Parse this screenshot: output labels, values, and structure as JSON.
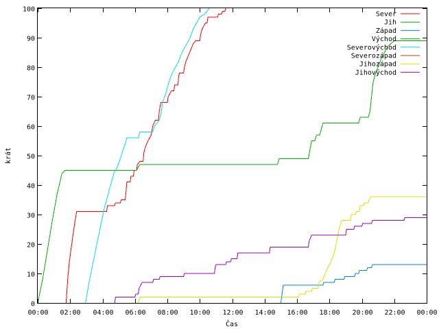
{
  "chart_data": {
    "type": "line",
    "title": "",
    "xlabel": "Čas",
    "ylabel": "krát",
    "xlim": [
      0,
      24
    ],
    "ylim": [
      0,
      100
    ],
    "xticks": [
      {
        "value": 0,
        "label": "00:00"
      },
      {
        "value": 2,
        "label": "02:00"
      },
      {
        "value": 4,
        "label": "04:00"
      },
      {
        "value": 6,
        "label": "06:00"
      },
      {
        "value": 8,
        "label": "08:00"
      },
      {
        "value": 10,
        "label": "10:00"
      },
      {
        "value": 12,
        "label": "12:00"
      },
      {
        "value": 14,
        "label": "14:00"
      },
      {
        "value": 16,
        "label": "16:00"
      },
      {
        "value": 18,
        "label": "18:00"
      },
      {
        "value": 20,
        "label": "20:00"
      },
      {
        "value": 22,
        "label": "22:00"
      },
      {
        "value": 24,
        "label": "00:00"
      }
    ],
    "yticks": [
      {
        "value": 0,
        "label": "0"
      },
      {
        "value": 10,
        "label": "10"
      },
      {
        "value": 20,
        "label": "20"
      },
      {
        "value": 30,
        "label": "30"
      },
      {
        "value": 40,
        "label": "40"
      },
      {
        "value": 50,
        "label": "50"
      },
      {
        "value": 60,
        "label": "60"
      },
      {
        "value": 70,
        "label": "70"
      },
      {
        "value": 80,
        "label": "80"
      },
      {
        "value": 90,
        "label": "90"
      },
      {
        "value": 100,
        "label": "100"
      }
    ],
    "grid": false,
    "legend": "top-right",
    "series": [
      {
        "name": "Sever",
        "color": "#ff0000",
        "points": [
          [
            1.75,
            0
          ],
          [
            1.85,
            8
          ],
          [
            1.95,
            14
          ],
          [
            2.1,
            20
          ],
          [
            2.25,
            26
          ],
          [
            2.4,
            31
          ],
          [
            3.1,
            31
          ],
          [
            4.25,
            31
          ],
          [
            4.3,
            33
          ],
          [
            4.75,
            33
          ],
          [
            4.8,
            34
          ],
          [
            5.1,
            34
          ],
          [
            5.15,
            35
          ],
          [
            5.4,
            35
          ],
          [
            5.45,
            38
          ],
          [
            5.5,
            41
          ],
          [
            5.7,
            41
          ],
          [
            5.75,
            43
          ],
          [
            5.9,
            43
          ],
          [
            5.95,
            45
          ],
          [
            6.1,
            45
          ],
          [
            6.15,
            47
          ],
          [
            6.3,
            48
          ],
          [
            6.5,
            48
          ],
          [
            6.55,
            51
          ],
          [
            6.65,
            53
          ],
          [
            6.8,
            55
          ],
          [
            7.0,
            57
          ],
          [
            7.1,
            60
          ],
          [
            7.25,
            62
          ],
          [
            7.45,
            62
          ],
          [
            7.5,
            65
          ],
          [
            7.6,
            68
          ],
          [
            8.0,
            68
          ],
          [
            8.05,
            70
          ],
          [
            8.25,
            72
          ],
          [
            8.4,
            72
          ],
          [
            8.45,
            74
          ],
          [
            8.65,
            74
          ],
          [
            8.7,
            77
          ],
          [
            8.75,
            78
          ],
          [
            9.0,
            78
          ],
          [
            9.05,
            80
          ],
          [
            9.15,
            82
          ],
          [
            9.3,
            84
          ],
          [
            9.45,
            86
          ],
          [
            9.6,
            88
          ],
          [
            9.75,
            89
          ],
          [
            10.0,
            89
          ],
          [
            10.05,
            91
          ],
          [
            10.15,
            93
          ],
          [
            10.35,
            95
          ],
          [
            10.45,
            95
          ],
          [
            10.5,
            97
          ],
          [
            11.1,
            97
          ],
          [
            11.15,
            98
          ],
          [
            11.35,
            98
          ],
          [
            11.4,
            99
          ],
          [
            11.55,
            99
          ],
          [
            11.6,
            100
          ]
        ]
      },
      {
        "name": "Jih",
        "color": "#00b000",
        "points": [
          [
            0,
            0
          ],
          [
            0.3,
            8
          ],
          [
            0.6,
            18
          ],
          [
            0.9,
            28
          ],
          [
            1.2,
            37
          ],
          [
            1.5,
            44
          ],
          [
            1.7,
            45
          ],
          [
            6.1,
            45
          ],
          [
            6.2,
            46
          ],
          [
            6.3,
            47
          ],
          [
            14.8,
            47
          ],
          [
            14.9,
            49
          ],
          [
            16.7,
            49
          ],
          [
            16.8,
            52
          ],
          [
            16.9,
            55
          ],
          [
            17.1,
            55
          ],
          [
            17.2,
            57
          ],
          [
            17.4,
            57
          ],
          [
            17.5,
            59
          ],
          [
            17.6,
            61
          ],
          [
            19.8,
            61
          ],
          [
            19.9,
            63
          ],
          [
            20.4,
            63
          ],
          [
            20.5,
            65
          ],
          [
            20.6,
            70
          ],
          [
            20.7,
            75
          ],
          [
            20.85,
            78
          ],
          [
            21.0,
            80
          ],
          [
            21.2,
            83
          ],
          [
            21.4,
            85
          ],
          [
            21.6,
            87
          ],
          [
            21.8,
            88
          ],
          [
            22.0,
            89
          ],
          [
            24,
            89
          ]
        ]
      },
      {
        "name": "Západ",
        "color": "#0080ff",
        "points": [
          [
            15.0,
            0
          ],
          [
            15.05,
            2
          ],
          [
            15.1,
            4
          ],
          [
            15.15,
            6
          ],
          [
            17.6,
            6
          ],
          [
            17.65,
            7
          ],
          [
            18.3,
            7
          ],
          [
            18.35,
            8
          ],
          [
            18.9,
            8
          ],
          [
            18.95,
            9
          ],
          [
            19.55,
            9
          ],
          [
            19.6,
            10
          ],
          [
            19.8,
            10
          ],
          [
            19.85,
            11
          ],
          [
            20.3,
            11
          ],
          [
            20.35,
            12
          ],
          [
            20.6,
            12
          ],
          [
            20.65,
            13
          ],
          [
            24,
            13
          ]
        ]
      },
      {
        "name": "Východ",
        "color": "#00b000",
        "points": []
      },
      {
        "name": "Severovýchod",
        "color": "#00e0e0",
        "points": [
          [
            2.95,
            0
          ],
          [
            3.2,
            8
          ],
          [
            3.5,
            16
          ],
          [
            3.8,
            24
          ],
          [
            4.1,
            32
          ],
          [
            4.4,
            38
          ],
          [
            4.7,
            44
          ],
          [
            4.9,
            46
          ],
          [
            5.1,
            49
          ],
          [
            5.2,
            51
          ],
          [
            5.4,
            54
          ],
          [
            5.5,
            56
          ],
          [
            6.2,
            56
          ],
          [
            6.3,
            58
          ],
          [
            7.1,
            58
          ],
          [
            7.2,
            60
          ],
          [
            7.5,
            62
          ],
          [
            7.6,
            64
          ],
          [
            7.7,
            68
          ],
          [
            7.9,
            71
          ],
          [
            8.1,
            75
          ],
          [
            8.3,
            78
          ],
          [
            8.5,
            80
          ],
          [
            8.7,
            82
          ],
          [
            8.9,
            85
          ],
          [
            9.2,
            88
          ],
          [
            9.4,
            90
          ],
          [
            9.6,
            93
          ],
          [
            9.8,
            95
          ],
          [
            10.0,
            97
          ],
          [
            10.3,
            98
          ],
          [
            10.6,
            100
          ]
        ]
      },
      {
        "name": "Severozápad",
        "color": "#c04000",
        "points": []
      },
      {
        "name": "Jihozápad",
        "color": "#e0e000",
        "points": [
          [
            6.2,
            0
          ],
          [
            6.25,
            1
          ],
          [
            6.3,
            2
          ],
          [
            16.1,
            2
          ],
          [
            16.15,
            3
          ],
          [
            16.5,
            3
          ],
          [
            16.55,
            4
          ],
          [
            16.9,
            4
          ],
          [
            16.95,
            5
          ],
          [
            17.3,
            5
          ],
          [
            17.35,
            7
          ],
          [
            17.6,
            8
          ],
          [
            17.75,
            10
          ],
          [
            17.9,
            12
          ],
          [
            18.1,
            14
          ],
          [
            18.3,
            17
          ],
          [
            18.45,
            21
          ],
          [
            18.6,
            25
          ],
          [
            18.75,
            28
          ],
          [
            19.3,
            28
          ],
          [
            19.35,
            30
          ],
          [
            19.6,
            30
          ],
          [
            19.65,
            31
          ],
          [
            19.85,
            31
          ],
          [
            19.9,
            33
          ],
          [
            20.1,
            33
          ],
          [
            20.15,
            34
          ],
          [
            20.4,
            34
          ],
          [
            20.45,
            35
          ],
          [
            20.55,
            36
          ],
          [
            24,
            36
          ]
        ]
      },
      {
        "name": "Jihovýchod",
        "color": "#a000c0",
        "points": [
          [
            4.75,
            0
          ],
          [
            4.8,
            2
          ],
          [
            6.0,
            2
          ],
          [
            6.05,
            3
          ],
          [
            6.2,
            3
          ],
          [
            6.25,
            5
          ],
          [
            6.35,
            6
          ],
          [
            6.45,
            7
          ],
          [
            7.1,
            7
          ],
          [
            7.15,
            8
          ],
          [
            7.5,
            8
          ],
          [
            7.55,
            9
          ],
          [
            9.0,
            9
          ],
          [
            9.05,
            10
          ],
          [
            10.9,
            10
          ],
          [
            10.95,
            12
          ],
          [
            11.0,
            13
          ],
          [
            11.6,
            13
          ],
          [
            11.65,
            14
          ],
          [
            11.9,
            14
          ],
          [
            11.95,
            15
          ],
          [
            12.3,
            15
          ],
          [
            12.35,
            17
          ],
          [
            14.3,
            17
          ],
          [
            14.35,
            19
          ],
          [
            16.7,
            19
          ],
          [
            16.75,
            21
          ],
          [
            16.9,
            23
          ],
          [
            19.0,
            23
          ],
          [
            19.05,
            25
          ],
          [
            19.5,
            25
          ],
          [
            19.55,
            26
          ],
          [
            20.0,
            26
          ],
          [
            20.05,
            27
          ],
          [
            20.6,
            27
          ],
          [
            20.65,
            28
          ],
          [
            22.6,
            28
          ],
          [
            22.65,
            29
          ],
          [
            24,
            29
          ]
        ]
      }
    ]
  }
}
